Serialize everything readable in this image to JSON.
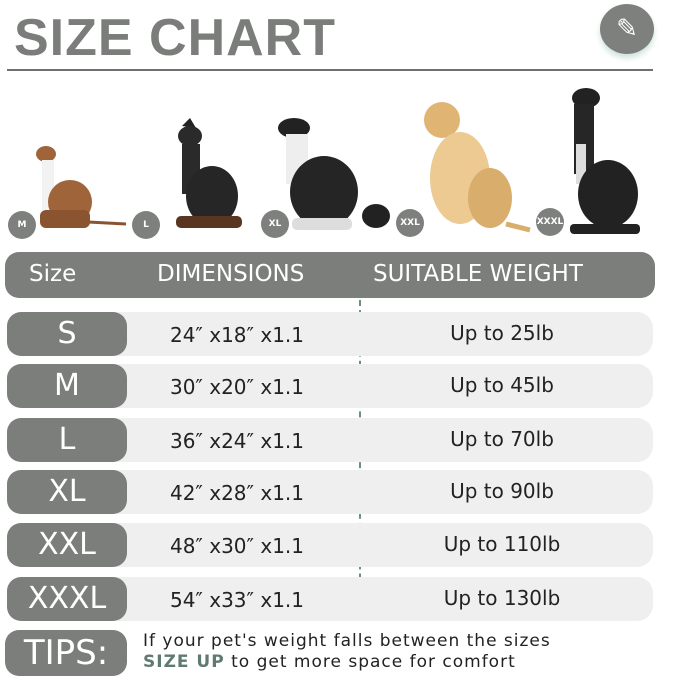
{
  "title": "SIZE CHART",
  "logo_icon": "ruler-pencil-icon",
  "dogs": [
    {
      "label": "M"
    },
    {
      "label": "L"
    },
    {
      "label": "XL"
    },
    {
      "label": "XXL"
    },
    {
      "label": "XXXL"
    }
  ],
  "header": {
    "size": "Size",
    "dimensions": "DIMENSIONS",
    "weight": "SUITABLE WEIGHT"
  },
  "rows": [
    {
      "size": "S",
      "dimensions": "24″ x18″ x1.1",
      "weight": "Up to 25lb"
    },
    {
      "size": "M",
      "dimensions": "30″ x20″ x1.1",
      "weight": "Up to 45lb"
    },
    {
      "size": "L",
      "dimensions": "36″ x24″ x1.1",
      "weight": "Up to 70lb"
    },
    {
      "size": "XL",
      "dimensions": "42″ x28″ x1.1",
      "weight": "Up to 90lb"
    },
    {
      "size": "XXL",
      "dimensions": "48″ x30″ x1.1",
      "weight": "Up to 110lb"
    },
    {
      "size": "XXXL",
      "dimensions": "54″ x33″ x1.1",
      "weight": "Up to 130lb"
    }
  ],
  "tips": {
    "label": "TIPS:",
    "line1": "If your pet's weight falls between the sizes",
    "emphasis": "SIZE UP",
    "line2": " to get more space for comfort"
  },
  "colors": {
    "gray": "#7c7e7c",
    "row_bg": "#efefef",
    "accent": "#5f7a70"
  }
}
